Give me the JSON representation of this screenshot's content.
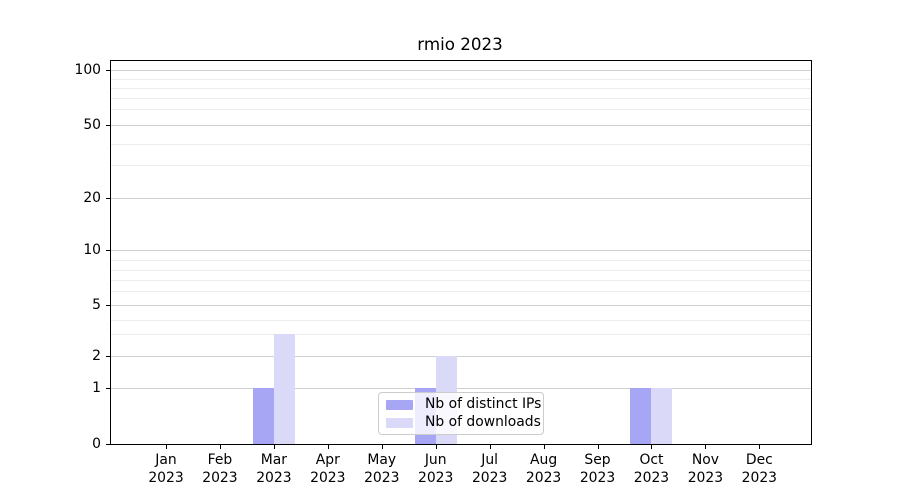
{
  "chart_data": {
    "type": "bar",
    "title": "rmio 2023",
    "categories": [
      "Jan 2023",
      "Feb 2023",
      "Mar 2023",
      "Apr 2023",
      "May 2023",
      "Jun 2023",
      "Jul 2023",
      "Aug 2023",
      "Sep 2023",
      "Oct 2023",
      "Nov 2023",
      "Dec 2023"
    ],
    "x_tick_line1": [
      "Jan",
      "Feb",
      "Mar",
      "Apr",
      "May",
      "Jun",
      "Jul",
      "Aug",
      "Sep",
      "Oct",
      "Nov",
      "Dec"
    ],
    "x_tick_line2": [
      "2023",
      "2023",
      "2023",
      "2023",
      "2023",
      "2023",
      "2023",
      "2023",
      "2023",
      "2023",
      "2023",
      "2023"
    ],
    "series": [
      {
        "name": "Nb of distinct IPs",
        "color": "#a6a6f5",
        "values": [
          0,
          0,
          1,
          0,
          0,
          1,
          0,
          0,
          0,
          1,
          0,
          0
        ]
      },
      {
        "name": "Nb of downloads",
        "color": "#dadaf8",
        "values": [
          0,
          0,
          3,
          0,
          0,
          2,
          0,
          0,
          0,
          1,
          0,
          0
        ]
      }
    ],
    "yscale": "symlog",
    "ylim": [
      0,
      115
    ],
    "y_major_ticks": [
      100,
      50,
      20,
      10,
      5,
      2,
      1,
      0
    ],
    "y_minor_ticks": [
      90,
      80,
      70,
      60,
      40,
      30,
      9,
      8,
      7,
      6,
      4,
      3
    ],
    "grid": true,
    "legend_position": "lower center",
    "bar_layout": "grouped side-by-side, pair centered on month tick"
  },
  "colors": {
    "spine": "#000000",
    "grid_major": "#d0d0d0",
    "grid_minor": "#ececec",
    "text": "#000000",
    "legend_border": "#cccccc",
    "legend_bg": "rgba(255,255,255,0.8)"
  }
}
